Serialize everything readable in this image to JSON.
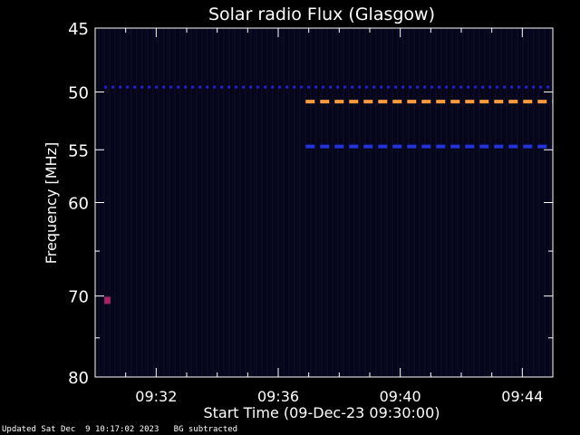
{
  "chart_data": {
    "type": "heatmap",
    "title": "Solar radio Flux (Glasgow)",
    "xlabel": "Start Time (09-Dec-23 09:30:00)",
    "ylabel": "Frequency [MHz]",
    "x_range_minutes": [
      0,
      15
    ],
    "x_ticks": [
      {
        "minute": 2,
        "label": "09:32"
      },
      {
        "minute": 6,
        "label": "09:36"
      },
      {
        "minute": 10,
        "label": "09:40"
      },
      {
        "minute": 14,
        "label": "09:44"
      }
    ],
    "ylim": [
      45,
      80
    ],
    "y_scale": "log",
    "y_ticks": [
      45,
      50,
      55,
      60,
      70,
      80
    ],
    "y_minor_ticks": [
      65,
      75
    ],
    "background_color": "#050518",
    "features": [
      {
        "name": "",
        "frequency_mhz": 49.6,
        "start_minute": 0.3,
        "end_minute": 15,
        "color": "#2222cc",
        "style": "dotted"
      },
      {
        "name": "",
        "frequency_mhz": 50.8,
        "start_minute": 6.9,
        "end_minute": 15,
        "color": "#ff9a3c",
        "style": "dashed"
      },
      {
        "name": "",
        "frequency_mhz": 54.7,
        "start_minute": 6.9,
        "end_minute": 15,
        "color": "#2233dd",
        "style": "dashed"
      },
      {
        "name": "",
        "frequency_mhz": 70.5,
        "start_minute": 0.3,
        "end_minute": 0.5,
        "color": "#aa2266",
        "style": "spot"
      }
    ]
  },
  "footer": {
    "updated": "Updated Sat Dec  9 10:17:02 2023",
    "note": "BG subtracted"
  }
}
